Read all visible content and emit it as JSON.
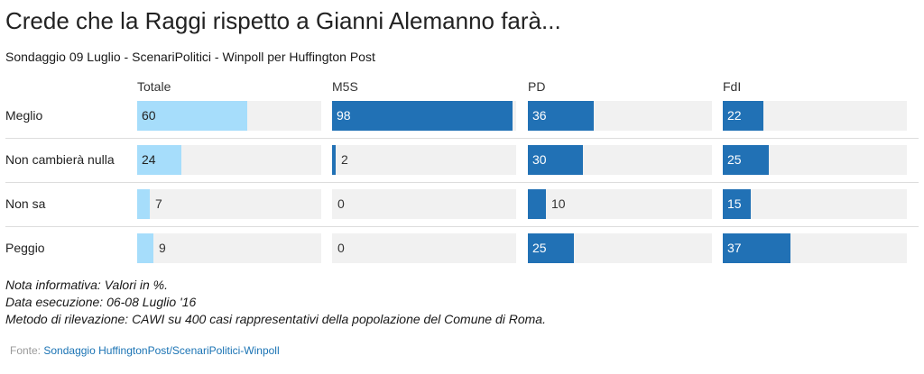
{
  "title": "Crede che la Raggi rispetto a Gianni Alemanno farà...",
  "subtitle": "Sondaggio 09 Luglio - ScenariPolitici - Winpoll per Huffington Post",
  "colors": {
    "light": "#a6ddfb",
    "dark": "#2171b5",
    "track": "#f1f1f1"
  },
  "chart_data": {
    "type": "bar",
    "orientation": "horizontal",
    "xlim": [
      0,
      100
    ],
    "categories": [
      "Meglio",
      "Non cambierà nulla",
      "Non sa",
      "Peggio"
    ],
    "series": [
      {
        "name": "Totale",
        "values": [
          60,
          24,
          7,
          9
        ]
      },
      {
        "name": "M5S",
        "values": [
          98,
          2,
          0,
          0
        ]
      },
      {
        "name": "PD",
        "values": [
          36,
          30,
          10,
          25
        ]
      },
      {
        "name": "FdI",
        "values": [
          22,
          25,
          15,
          37
        ]
      }
    ]
  },
  "notes": [
    "Nota informativa: Valori in %.",
    "Data esecuzione: 06-08 Luglio '16",
    "Metodo di rilevazione: CAWI su 400 casi rappresentativi della popolazione del Comune di Roma."
  ],
  "source": {
    "label": "Fonte:",
    "link_text": "Sondaggio HuffingtonPost/ScenariPolitici-Winpoll"
  }
}
